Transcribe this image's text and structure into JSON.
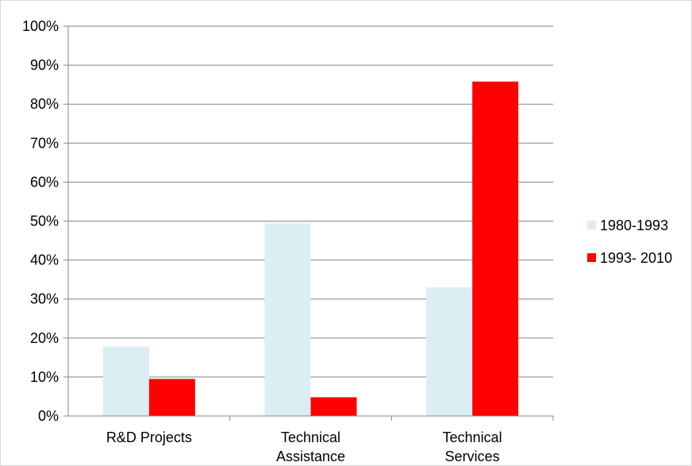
{
  "chart_data": {
    "type": "bar",
    "categories": [
      [
        "R&D Projects"
      ],
      [
        "Technical",
        "Assistance"
      ],
      [
        "Technical",
        "Services"
      ]
    ],
    "series": [
      {
        "name": "1980-1993",
        "color": "#DAEEF3",
        "values": [
          17.8,
          49.4,
          33.0
        ]
      },
      {
        "name": "1993- 2010",
        "color": "#FF0000",
        "values": [
          9.5,
          4.8,
          85.8
        ]
      }
    ],
    "ylim": [
      0,
      100
    ],
    "yticks": [
      "0%",
      "10%",
      "20%",
      "30%",
      "40%",
      "50%",
      "60%",
      "70%",
      "80%",
      "90%",
      "100%"
    ],
    "ytick_values": [
      0,
      10,
      20,
      30,
      40,
      50,
      60,
      70,
      80,
      90,
      100
    ],
    "grid": true,
    "legend_position": "right"
  }
}
